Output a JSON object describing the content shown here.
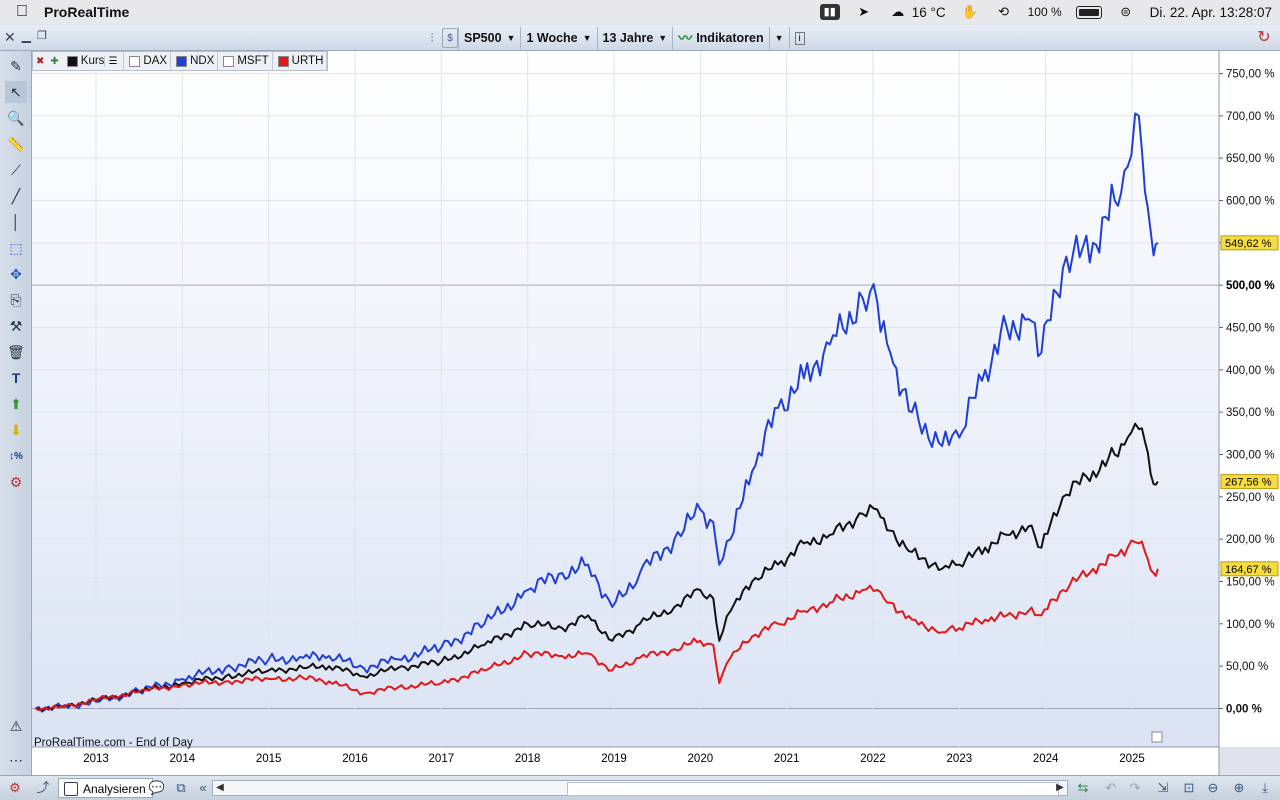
{
  "menubar": {
    "app_name": "ProRealTime",
    "temperature": "16 °C",
    "battery": "100 %",
    "datetime": "Di. 22. Apr.  13:28:07",
    "icons": [
      "apple-icon",
      "chart-app-icon",
      "location-icon",
      "cloud-icon",
      "hand-icon",
      "time-machine-icon",
      "battery-icon",
      "control-center-icon"
    ]
  },
  "toolbar": {
    "symbol": "SP500",
    "interval": "1 Woche",
    "period": "13 Jahre",
    "indicators": "Indikatoren",
    "info": "i"
  },
  "legend": {
    "items": [
      {
        "label": "Kurs",
        "color": "#111111",
        "checked": true
      },
      {
        "label": "DAX",
        "color": "#ffffff",
        "checked": false
      },
      {
        "label": "NDX",
        "color": "#1f3fd6",
        "checked": true
      },
      {
        "label": "MSFT",
        "color": "#ffffff",
        "checked": false
      },
      {
        "label": "URTH",
        "color": "#e01818",
        "checked": true
      }
    ]
  },
  "chart_data": {
    "type": "line",
    "title": "",
    "watermark": "ProRealTime.com - End of Day",
    "y_unit": "%",
    "ylim": [
      -10,
      770
    ],
    "y_ticks": [
      "750,00 %",
      "700,00 %",
      "650,00 %",
      "600,00 %",
      "550,00 %",
      "500,00 %",
      "450,00 %",
      "400,00 %",
      "350,00 %",
      "300,00 %",
      "250,00 %",
      "200,00 %",
      "150,00 %",
      "100,00 %",
      "50,00 %",
      "0,00 %"
    ],
    "y_tick_values": [
      750,
      700,
      650,
      600,
      550,
      500,
      450,
      400,
      350,
      300,
      250,
      200,
      150,
      100,
      50,
      0
    ],
    "x_ticks": [
      "2013",
      "2014",
      "2015",
      "2016",
      "2017",
      "2018",
      "2019",
      "2020",
      "2021",
      "2022",
      "2023",
      "2024",
      "2025"
    ],
    "x_tick_values": [
      2013,
      2014,
      2015,
      2016,
      2017,
      2018,
      2019,
      2020,
      2021,
      2022,
      2023,
      2024,
      2025
    ],
    "xlim": [
      2012.3,
      2026.0
    ],
    "reference_line": 500,
    "reference_label": "500,00 %",
    "series": [
      {
        "name": "NDX",
        "color": "#1f3fd6",
        "last_label": "549,62 %",
        "x": [
          2012.3,
          2012.6,
          2013.0,
          2013.5,
          2014.0,
          2014.5,
          2015.0,
          2015.4,
          2015.7,
          2016.1,
          2016.5,
          2017.0,
          2017.5,
          2018.0,
          2018.4,
          2018.7,
          2018.98,
          2019.3,
          2019.7,
          2020.0,
          2020.15,
          2020.22,
          2020.35,
          2020.6,
          2020.9,
          2021.2,
          2021.5,
          2021.88,
          2022.05,
          2022.2,
          2022.45,
          2022.8,
          2023.0,
          2023.3,
          2023.55,
          2023.8,
          2023.95,
          2024.2,
          2024.55,
          2024.8,
          2024.95,
          2025.08,
          2025.15,
          2025.25,
          2025.3
        ],
        "y": [
          0,
          2,
          8,
          20,
          35,
          48,
          58,
          60,
          62,
          48,
          58,
          72,
          100,
          140,
          160,
          170,
          120,
          160,
          200,
          235,
          220,
          170,
          200,
          280,
          355,
          390,
          430,
          485,
          480,
          420,
          350,
          310,
          320,
          400,
          450,
          460,
          420,
          520,
          550,
          600,
          640,
          700,
          610,
          535,
          550
        ]
      },
      {
        "name": "Kurs",
        "color": "#111111",
        "last_label": "267,56 %",
        "x": [
          2012.3,
          2012.6,
          2013.0,
          2013.5,
          2014.0,
          2014.5,
          2015.0,
          2015.4,
          2015.7,
          2016.1,
          2016.5,
          2017.0,
          2017.5,
          2018.0,
          2018.4,
          2018.7,
          2018.98,
          2019.3,
          2019.7,
          2020.0,
          2020.15,
          2020.22,
          2020.35,
          2020.6,
          2020.9,
          2021.2,
          2021.5,
          2021.88,
          2022.05,
          2022.2,
          2022.45,
          2022.8,
          2023.0,
          2023.3,
          2023.55,
          2023.8,
          2023.95,
          2024.2,
          2024.55,
          2024.8,
          2024.95,
          2025.08,
          2025.15,
          2025.25,
          2025.3
        ],
        "y": [
          0,
          2,
          10,
          20,
          30,
          38,
          45,
          48,
          50,
          38,
          48,
          55,
          75,
          100,
          95,
          110,
          80,
          100,
          120,
          140,
          130,
          80,
          115,
          150,
          170,
          195,
          205,
          230,
          235,
          210,
          185,
          165,
          170,
          190,
          205,
          215,
          190,
          250,
          280,
          300,
          320,
          330,
          315,
          265,
          268
        ]
      },
      {
        "name": "URTH",
        "color": "#e01818",
        "last_label": "164,67 %",
        "x": [
          2012.3,
          2012.6,
          2013.0,
          2013.5,
          2014.0,
          2014.5,
          2015.0,
          2015.4,
          2015.7,
          2016.1,
          2016.5,
          2017.0,
          2017.5,
          2018.0,
          2018.4,
          2018.7,
          2018.98,
          2019.3,
          2019.7,
          2020.0,
          2020.15,
          2020.22,
          2020.35,
          2020.6,
          2020.9,
          2021.2,
          2021.5,
          2021.88,
          2022.05,
          2022.2,
          2022.45,
          2022.8,
          2023.0,
          2023.3,
          2023.55,
          2023.8,
          2023.95,
          2024.2,
          2024.55,
          2024.8,
          2024.95,
          2025.08,
          2025.15,
          2025.25,
          2025.3
        ],
        "y": [
          0,
          2,
          10,
          20,
          28,
          32,
          35,
          36,
          32,
          18,
          25,
          30,
          45,
          65,
          62,
          65,
          45,
          60,
          70,
          80,
          75,
          30,
          60,
          85,
          100,
          115,
          125,
          140,
          140,
          125,
          105,
          90,
          95,
          105,
          110,
          115,
          110,
          140,
          165,
          180,
          190,
          195,
          185,
          160,
          165
        ]
      }
    ]
  },
  "bottombar": {
    "tab_label": "Analysieren"
  }
}
